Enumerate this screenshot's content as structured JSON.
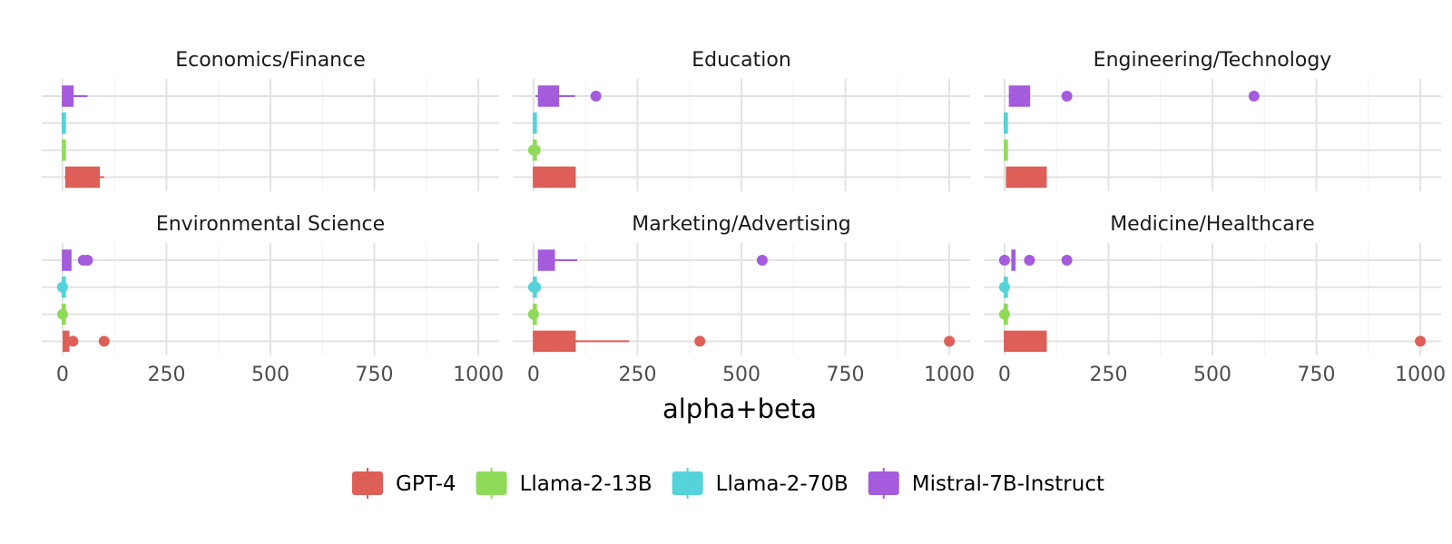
{
  "chart_data": {
    "type": "boxplot",
    "xlabel": "alpha+beta",
    "xlim": [
      -50,
      1050
    ],
    "xticks": [
      0,
      250,
      500,
      750,
      1000
    ],
    "xtick_labels": [
      "0",
      "250",
      "500",
      "750",
      "1000"
    ],
    "legend_position": "bottom",
    "series": [
      {
        "name": "GPT-4",
        "color": "#dd5f57"
      },
      {
        "name": "Llama-2-13B",
        "color": "#8fdb59"
      },
      {
        "name": "Llama-2-70B",
        "color": "#55d3da"
      },
      {
        "name": "Mistral-7B-Instruct",
        "color": "#a45bdc"
      }
    ],
    "facets": [
      {
        "title": "Economics/Finance",
        "boxes": [
          {
            "series": "GPT-4",
            "whisker_low": 5,
            "q1": 8,
            "median": 50,
            "q3": 88,
            "whisker_high": 100,
            "outliers": []
          },
          {
            "series": "Llama-2-13B",
            "whisker_low": 0,
            "q1": 0,
            "median": 2,
            "q3": 4,
            "whisker_high": 5,
            "outliers": []
          },
          {
            "series": "Llama-2-70B",
            "whisker_low": 0,
            "q1": 0,
            "median": 0,
            "q3": 2,
            "whisker_high": 4,
            "outliers": []
          },
          {
            "series": "Mistral-7B-Instruct",
            "whisker_low": 0,
            "q1": 0,
            "median": 10,
            "q3": 25,
            "whisker_high": 60,
            "outliers": []
          }
        ]
      },
      {
        "title": "Education",
        "boxes": [
          {
            "series": "GPT-4",
            "whisker_low": 0,
            "q1": 0,
            "median": 50,
            "q3": 100,
            "whisker_high": 100,
            "outliers": []
          },
          {
            "series": "Llama-2-13B",
            "whisker_low": 0,
            "q1": 0,
            "median": 0,
            "q3": 2,
            "whisker_high": 4,
            "outliers": [
              0,
              4
            ]
          },
          {
            "series": "Llama-2-70B",
            "whisker_low": 0,
            "q1": 0,
            "median": 0,
            "q3": 2,
            "whisker_high": 4,
            "outliers": []
          },
          {
            "series": "Mistral-7B-Instruct",
            "whisker_low": 5,
            "q1": 12,
            "median": 40,
            "q3": 60,
            "whisker_high": 100,
            "outliers": [
              150
            ]
          }
        ]
      },
      {
        "title": "Engineering/Technology",
        "boxes": [
          {
            "series": "GPT-4",
            "whisker_low": 5,
            "q1": 5,
            "median": 50,
            "q3": 100,
            "whisker_high": 100,
            "outliers": []
          },
          {
            "series": "Llama-2-13B",
            "whisker_low": 0,
            "q1": 0,
            "median": 2,
            "q3": 4,
            "whisker_high": 5,
            "outliers": []
          },
          {
            "series": "Llama-2-70B",
            "whisker_low": 0,
            "q1": 0,
            "median": 0,
            "q3": 2,
            "whisker_high": 4,
            "outliers": []
          },
          {
            "series": "Mistral-7B-Instruct",
            "whisker_low": 10,
            "q1": 12,
            "median": 30,
            "q3": 60,
            "whisker_high": 60,
            "outliers": [
              150,
              600
            ]
          }
        ]
      },
      {
        "title": "Environmental Science",
        "boxes": [
          {
            "series": "GPT-4",
            "whisker_low": 2,
            "q1": 2,
            "median": 6,
            "q3": 15,
            "whisker_high": 15,
            "outliers": [
              25,
              100
            ]
          },
          {
            "series": "Llama-2-13B",
            "whisker_low": 0,
            "q1": 0,
            "median": 0,
            "q3": 2,
            "whisker_high": 4,
            "outliers": [
              0
            ]
          },
          {
            "series": "Llama-2-70B",
            "whisker_low": 0,
            "q1": 0,
            "median": 0,
            "q3": 2,
            "whisker_high": 4,
            "outliers": [
              0
            ]
          },
          {
            "series": "Mistral-7B-Instruct",
            "whisker_low": 0,
            "q1": 0,
            "median": 5,
            "q3": 20,
            "whisker_high": 20,
            "outliers": [
              50,
              60
            ]
          }
        ]
      },
      {
        "title": "Marketing/Advertising",
        "boxes": [
          {
            "series": "GPT-4",
            "whisker_low": 0,
            "q1": 0,
            "median": 50,
            "q3": 100,
            "whisker_high": 230,
            "outliers": [
              400,
              1000
            ]
          },
          {
            "series": "Llama-2-13B",
            "whisker_low": 0,
            "q1": 0,
            "median": 0,
            "q3": 2,
            "whisker_high": 4,
            "outliers": [
              0
            ]
          },
          {
            "series": "Llama-2-70B",
            "whisker_low": 0,
            "q1": 0,
            "median": 0,
            "q3": 2,
            "whisker_high": 4,
            "outliers": [
              0,
              5
            ]
          },
          {
            "series": "Mistral-7B-Instruct",
            "whisker_low": 10,
            "q1": 12,
            "median": 30,
            "q3": 50,
            "whisker_high": 105,
            "outliers": [
              550
            ]
          }
        ]
      },
      {
        "title": "Medicine/Healthcare",
        "boxes": [
          {
            "series": "GPT-4",
            "whisker_low": 0,
            "q1": 0,
            "median": 50,
            "q3": 100,
            "whisker_high": 100,
            "outliers": [
              1000
            ]
          },
          {
            "series": "Llama-2-13B",
            "whisker_low": 0,
            "q1": 0,
            "median": 0,
            "q3": 2,
            "whisker_high": 4,
            "outliers": [
              0
            ]
          },
          {
            "series": "Llama-2-70B",
            "whisker_low": 0,
            "q1": 0,
            "median": 0,
            "q3": 2,
            "whisker_high": 4,
            "outliers": [
              0
            ]
          },
          {
            "series": "Mistral-7B-Instruct",
            "whisker_low": 15,
            "q1": 18,
            "median": 22,
            "q3": 25,
            "whisker_high": 25,
            "outliers": [
              0,
              60,
              150
            ]
          }
        ]
      }
    ]
  }
}
